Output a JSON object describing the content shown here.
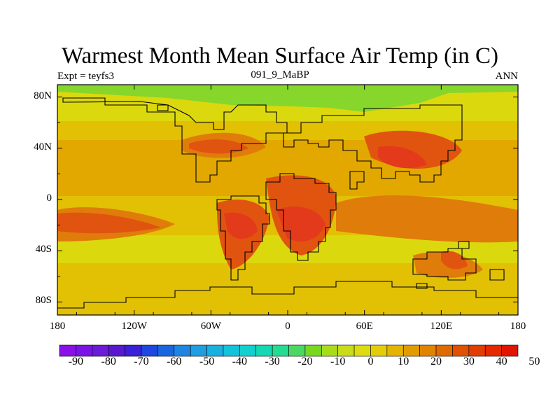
{
  "title": "Warmest Month Mean Surface Air Temp (in C)",
  "subtitle_left": "Expt = teyfs3",
  "subtitle_center": "091_9_MaBP",
  "subtitle_right": "ANN",
  "x_ticks": [
    "180",
    "120W",
    "60W",
    "0",
    "60E",
    "120E",
    "180"
  ],
  "y_ticks": [
    "80N",
    "40N",
    "0",
    "40S",
    "80S"
  ],
  "colorbar": {
    "labels": [
      "-90",
      "-80",
      "-70",
      "-60",
      "-50",
      "-40",
      "-30",
      "-20",
      "-10",
      "0",
      "10",
      "20",
      "30",
      "40",
      "50"
    ],
    "colors": [
      "#8a10e8",
      "#7a14e4",
      "#6a1ad8",
      "#5818d0",
      "#3a20d8",
      "#1e46e0",
      "#1a66e0",
      "#1e86e2",
      "#1e9ee0",
      "#18b0e0",
      "#14c2dc",
      "#12d0d0",
      "#14d8b4",
      "#22dc90",
      "#4ad860",
      "#78d820",
      "#a8dc18",
      "#c8dc18",
      "#dcdc10",
      "#e4cc08",
      "#e4b400",
      "#e09c00",
      "#e08400",
      "#e06a00",
      "#e05200",
      "#e23c00",
      "#e42800",
      "#e01400"
    ]
  },
  "map_colors": {
    "arctic": "#86d62c",
    "cold": "#cce016",
    "cool": "#dcd80e",
    "mild": "#e2c004",
    "warm": "#e2a800",
    "hot": "#e07c0a",
    "hottest": "#e05410",
    "extreme": "#e23a1a"
  }
}
